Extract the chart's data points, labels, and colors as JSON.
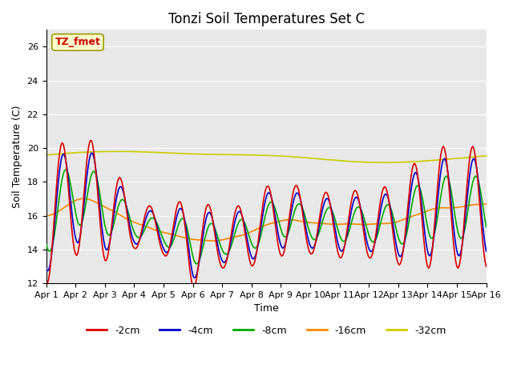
{
  "title": "Tonzi Soil Temperatures Set C",
  "xlabel": "Time",
  "ylabel": "Soil Temperature (C)",
  "ylim": [
    12,
    27
  ],
  "yticks": [
    12,
    14,
    16,
    18,
    20,
    22,
    24,
    26
  ],
  "xlim": [
    0,
    15
  ],
  "xtick_labels": [
    "Apr 1",
    "Apr 2",
    "Apr 3",
    "Apr 4",
    "Apr 5",
    "Apr 6",
    "Apr 7",
    "Apr 8",
    "Apr 9",
    "Apr 10",
    "Apr 11",
    "Apr 12",
    "Apr 13",
    "Apr 14",
    "Apr 15",
    "Apr 16"
  ],
  "annotation_text": "TZ_fmet",
  "annotation_color": "#cc0000",
  "annotation_bg": "#ffffcc",
  "annotation_edge": "#999900",
  "fig_bg": "#ffffff",
  "plot_bg": "#e8e8e8",
  "grid_color": "#ffffff",
  "series": {
    "-2cm": {
      "color": "#dd0000",
      "lw": 1.2
    },
    "-4cm": {
      "color": "#0000cc",
      "lw": 1.2
    },
    "-8cm": {
      "color": "#00aa00",
      "lw": 1.2
    },
    "-16cm": {
      "color": "#ff8800",
      "lw": 1.2
    },
    "-32cm": {
      "color": "#cccc00",
      "lw": 1.2
    }
  },
  "title_fontsize": 12,
  "label_fontsize": 9,
  "tick_fontsize": 8,
  "legend_fontsize": 9
}
